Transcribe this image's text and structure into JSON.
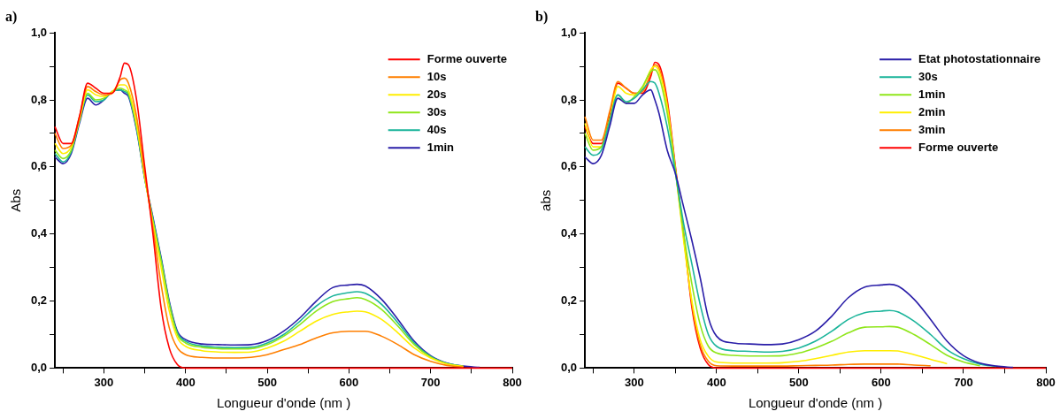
{
  "chart_data": [
    {
      "type": "line",
      "title": "a)",
      "xlabel": "Longueur d'onde (nm )",
      "ylabel": "Abs",
      "legend": "top right",
      "marker": "none",
      "line_style": "solid",
      "grid": false,
      "xlim": [
        240,
        800
      ],
      "ylim": [
        0,
        1
      ],
      "xticks": [
        {
          "value": 250,
          "label": null
        },
        300,
        {
          "value": 350,
          "label": null
        },
        400,
        {
          "value": 450,
          "label": null
        },
        500,
        {
          "value": 550,
          "label": null
        },
        600,
        {
          "value": 650,
          "label": null
        },
        700,
        {
          "value": 750,
          "label": null
        },
        800
      ],
      "yticks": [
        {
          "value": 0,
          "label": "0,0"
        },
        {
          "value": 0.1,
          "label": null
        },
        {
          "value": 0.2,
          "label": "0,2"
        },
        {
          "value": 0.3,
          "label": null
        },
        {
          "value": 0.4,
          "label": "0,4"
        },
        {
          "value": 0.5,
          "label": null
        },
        {
          "value": 0.6,
          "label": "0,6"
        },
        {
          "value": 0.7,
          "label": null
        },
        {
          "value": 0.8,
          "label": "0,8"
        },
        {
          "value": 0.9,
          "label": null
        },
        {
          "value": 1,
          "label": "1,0"
        }
      ],
      "x": [
        240,
        250,
        260,
        270,
        280,
        290,
        300,
        310,
        320,
        325,
        330,
        340,
        350,
        360,
        370,
        380,
        390,
        400,
        420,
        440,
        460,
        480,
        500,
        520,
        540,
        560,
        580,
        600,
        610,
        620,
        640,
        660,
        680,
        700,
        720,
        740,
        760,
        780,
        800
      ],
      "series": [
        {
          "name": "Forme ouverte",
          "color": "#ff0000",
          "values": [
            0.72,
            0.67,
            0.67,
            0.75,
            0.85,
            0.835,
            0.82,
            0.82,
            0.87,
            0.91,
            0.905,
            0.8,
            0.6,
            0.4,
            0.18,
            0.06,
            0.01,
            0,
            0,
            0,
            0,
            0,
            0,
            0,
            0,
            0,
            0,
            0,
            0,
            0,
            0,
            0,
            0,
            0,
            0,
            0,
            0,
            0,
            0
          ]
        },
        {
          "name": "10s",
          "color": "#ff7f00",
          "values": [
            0.7,
            0.655,
            0.665,
            0.75,
            0.84,
            0.825,
            0.815,
            0.82,
            0.86,
            0.865,
            0.85,
            0.75,
            0.58,
            0.42,
            0.25,
            0.12,
            0.06,
            0.04,
            0.032,
            0.03,
            0.03,
            0.032,
            0.04,
            0.055,
            0.07,
            0.09,
            0.105,
            0.11,
            0.11,
            0.11,
            0.095,
            0.07,
            0.04,
            0.02,
            0.008,
            0.003,
            null,
            null,
            null
          ]
        },
        {
          "name": "20s",
          "color": "#ffee00",
          "values": [
            0.67,
            0.64,
            0.66,
            0.74,
            0.83,
            0.815,
            0.81,
            0.825,
            0.845,
            0.845,
            0.83,
            0.73,
            0.57,
            0.43,
            0.3,
            0.17,
            0.09,
            0.065,
            0.052,
            0.048,
            0.047,
            0.048,
            0.06,
            0.08,
            0.11,
            0.14,
            0.16,
            0.168,
            0.17,
            0.168,
            0.145,
            0.105,
            0.06,
            0.03,
            0.012,
            0.005,
            null,
            null,
            null
          ]
        },
        {
          "name": "30s",
          "color": "#8fe61a",
          "values": [
            0.65,
            0.625,
            0.65,
            0.74,
            0.82,
            0.8,
            0.805,
            0.825,
            0.835,
            0.83,
            0.82,
            0.72,
            0.57,
            0.44,
            0.32,
            0.19,
            0.1,
            0.075,
            0.062,
            0.058,
            0.057,
            0.058,
            0.07,
            0.095,
            0.13,
            0.17,
            0.198,
            0.207,
            0.21,
            0.205,
            0.175,
            0.125,
            0.07,
            0.033,
            0.013,
            0.005,
            null,
            null,
            null
          ]
        },
        {
          "name": "40s",
          "color": "#1ab49a",
          "values": [
            0.64,
            0.615,
            0.645,
            0.735,
            0.815,
            0.795,
            0.8,
            0.825,
            0.83,
            0.825,
            0.815,
            0.715,
            0.565,
            0.445,
            0.325,
            0.195,
            0.105,
            0.08,
            0.066,
            0.062,
            0.061,
            0.062,
            0.075,
            0.1,
            0.14,
            0.185,
            0.215,
            0.225,
            0.228,
            0.223,
            0.19,
            0.135,
            0.075,
            0.035,
            0.014,
            0.005,
            null,
            null,
            null
          ]
        },
        {
          "name": "1min",
          "color": "#2a1ea8",
          "values": [
            0.63,
            0.61,
            0.64,
            0.73,
            0.805,
            0.785,
            0.8,
            0.825,
            0.83,
            0.82,
            0.81,
            0.71,
            0.565,
            0.45,
            0.33,
            0.2,
            0.11,
            0.085,
            0.072,
            0.07,
            0.069,
            0.07,
            0.082,
            0.11,
            0.15,
            0.2,
            0.24,
            0.248,
            0.25,
            0.245,
            0.205,
            0.145,
            0.08,
            0.037,
            0.015,
            0.006,
            0.002,
            null,
            null
          ]
        }
      ]
    },
    {
      "type": "line",
      "title": "b)",
      "xlabel": "Longueur d'onde (nm )",
      "ylabel": "abs",
      "legend": "top right",
      "marker": "none",
      "line_style": "solid",
      "grid": false,
      "xlim": [
        240,
        800
      ],
      "ylim": [
        0,
        1
      ],
      "xticks": [
        {
          "value": 250,
          "label": null
        },
        300,
        {
          "value": 350,
          "label": null
        },
        400,
        {
          "value": 450,
          "label": null
        },
        500,
        {
          "value": 550,
          "label": null
        },
        600,
        {
          "value": 650,
          "label": null
        },
        700,
        {
          "value": 750,
          "label": null
        },
        800
      ],
      "yticks": [
        {
          "value": 0,
          "label": "0,0"
        },
        {
          "value": 0.1,
          "label": null
        },
        {
          "value": 0.2,
          "label": "0,2"
        },
        {
          "value": 0.3,
          "label": null
        },
        {
          "value": 0.4,
          "label": "0,4"
        },
        {
          "value": 0.5,
          "label": null
        },
        {
          "value": 0.6,
          "label": "0,6"
        },
        {
          "value": 0.7,
          "label": null
        },
        {
          "value": 0.8,
          "label": "0,8"
        },
        {
          "value": 0.9,
          "label": null
        },
        {
          "value": 1,
          "label": "1,0"
        }
      ],
      "x": [
        240,
        250,
        260,
        270,
        280,
        290,
        300,
        310,
        320,
        325,
        330,
        340,
        350,
        360,
        370,
        380,
        390,
        400,
        420,
        440,
        460,
        480,
        500,
        520,
        540,
        560,
        580,
        600,
        610,
        620,
        640,
        660,
        680,
        700,
        720,
        740,
        760,
        780,
        800
      ],
      "series": [
        {
          "name": "Etat photostationnaire",
          "color": "#2a1ea8",
          "values": [
            0.63,
            0.61,
            0.635,
            0.72,
            0.805,
            0.79,
            0.79,
            0.815,
            0.83,
            0.8,
            0.76,
            0.65,
            0.58,
            0.48,
            0.38,
            0.27,
            0.15,
            0.095,
            0.075,
            0.072,
            0.07,
            0.072,
            0.085,
            0.11,
            0.155,
            0.21,
            0.242,
            0.248,
            0.25,
            0.245,
            0.205,
            0.145,
            0.08,
            0.037,
            0.015,
            0.006,
            0.002,
            null,
            null
          ]
        },
        {
          "name": "30s",
          "color": "#1ab49a",
          "values": [
            0.66,
            0.635,
            0.65,
            0.735,
            0.815,
            0.795,
            0.805,
            0.83,
            0.855,
            0.85,
            0.82,
            0.72,
            0.58,
            0.43,
            0.31,
            0.19,
            0.1,
            0.065,
            0.052,
            0.05,
            0.048,
            0.05,
            0.06,
            0.08,
            0.11,
            0.145,
            0.165,
            0.17,
            0.172,
            0.168,
            0.14,
            0.1,
            0.055,
            0.028,
            0.012,
            0.005,
            null,
            null,
            null
          ]
        },
        {
          "name": "1min",
          "color": "#8fe61a",
          "values": [
            0.7,
            0.65,
            0.66,
            0.74,
            0.815,
            0.79,
            0.81,
            0.84,
            0.885,
            0.89,
            0.87,
            0.76,
            0.59,
            0.4,
            0.25,
            0.13,
            0.065,
            0.045,
            0.038,
            0.036,
            0.036,
            0.037,
            0.045,
            0.06,
            0.08,
            0.105,
            0.122,
            0.123,
            0.124,
            0.122,
            0.1,
            0.07,
            0.038,
            0.018,
            0.007,
            null,
            null,
            null,
            null
          ]
        },
        {
          "name": "2min",
          "color": "#ffee00",
          "values": [
            0.73,
            0.66,
            0.66,
            0.74,
            0.84,
            0.82,
            0.815,
            0.835,
            0.89,
            0.9,
            0.885,
            0.78,
            0.59,
            0.38,
            0.2,
            0.085,
            0.035,
            0.018,
            0.015,
            0.015,
            0.015,
            0.016,
            0.02,
            0.028,
            0.038,
            0.048,
            0.052,
            0.052,
            0.052,
            0.051,
            0.04,
            0.026,
            0.013,
            null,
            null,
            null,
            null,
            null,
            null
          ]
        },
        {
          "name": "3min",
          "color": "#ff7f00",
          "values": [
            0.75,
            0.68,
            0.68,
            0.765,
            0.855,
            0.835,
            0.82,
            0.825,
            0.88,
            0.905,
            0.895,
            0.79,
            0.59,
            0.39,
            0.19,
            0.07,
            0.02,
            0.007,
            0.006,
            0.006,
            0.006,
            0.006,
            0.007,
            0.008,
            0.009,
            0.011,
            0.012,
            0.012,
            0.012,
            0.012,
            0.009,
            0.007,
            null,
            null,
            null,
            null,
            null,
            null,
            null
          ]
        },
        {
          "name": "Forme ouverte",
          "color": "#ff0000",
          "values": [
            0.72,
            0.67,
            0.67,
            0.75,
            0.85,
            0.835,
            0.82,
            0.82,
            0.87,
            0.912,
            0.905,
            0.8,
            0.6,
            0.4,
            0.18,
            0.06,
            0.01,
            0,
            0,
            0,
            0,
            0,
            0,
            0,
            0,
            0,
            0,
            0,
            0,
            0,
            0,
            0,
            0,
            0,
            0,
            0,
            0,
            0,
            0
          ]
        }
      ]
    }
  ]
}
